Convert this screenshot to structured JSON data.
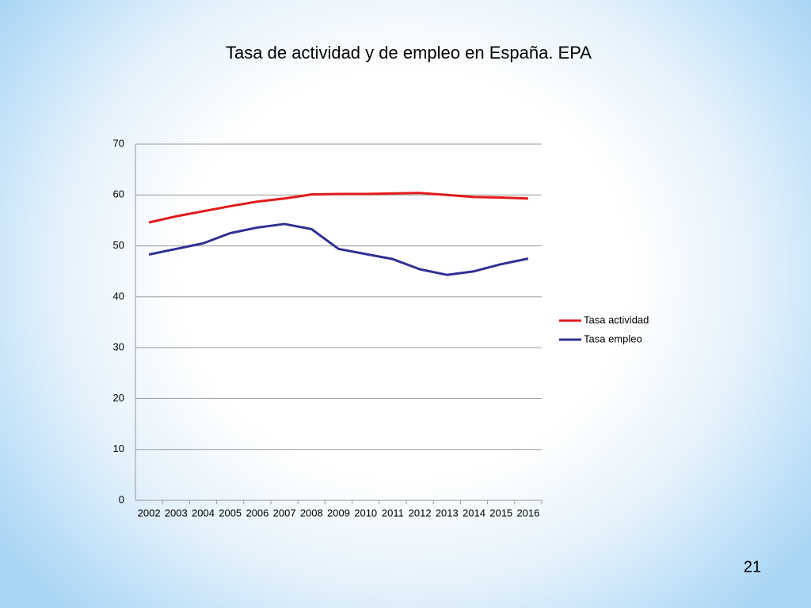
{
  "chart_data": {
    "type": "line",
    "title": "Tasa de actividad y de empleo en España. EPA",
    "categories": [
      "2002",
      "2003",
      "2004",
      "2005",
      "2006",
      "2007",
      "2008",
      "2009",
      "2010",
      "2011",
      "2012",
      "2013",
      "2014",
      "2015",
      "2016"
    ],
    "series": [
      {
        "name": "Tasa actividad",
        "color": "#e31a1c",
        "values": [
          54.6,
          55.8,
          56.8,
          57.8,
          58.7,
          59.3,
          60.1,
          60.2,
          60.2,
          60.3,
          60.4,
          60.0,
          59.6,
          59.5,
          59.3
        ]
      },
      {
        "name": "Tasa empleo",
        "color": "#2e3192",
        "values": [
          48.3,
          49.4,
          50.5,
          52.5,
          53.6,
          54.3,
          53.3,
          49.4,
          48.4,
          47.4,
          45.4,
          44.3,
          45.0,
          46.4,
          47.5
        ]
      }
    ],
    "ylim": [
      0,
      70
    ],
    "yticks": [
      0,
      10,
      20,
      30,
      40,
      50,
      60,
      70
    ],
    "grid": true,
    "legend": "right"
  },
  "page_number": "21"
}
